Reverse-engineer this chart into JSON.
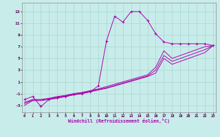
{
  "xlabel": "Windchill (Refroidissement éolien,°C)",
  "background_color": "#c8ecea",
  "grid_color": "#a8d4d0",
  "line_color": "#aa00aa",
  "x_ticks": [
    0,
    1,
    2,
    3,
    4,
    5,
    6,
    7,
    8,
    9,
    10,
    11,
    12,
    13,
    14,
    15,
    16,
    17,
    18,
    19,
    20,
    21,
    22,
    23
  ],
  "y_ticks": [
    -3,
    -1,
    1,
    3,
    5,
    7,
    9,
    11,
    13
  ],
  "xlim": [
    -0.3,
    23.3
  ],
  "ylim": [
    -4.2,
    14.5
  ],
  "series1_x": [
    0,
    1,
    2,
    3,
    4,
    5,
    6,
    7,
    8,
    9,
    10,
    11,
    12,
    13,
    14,
    15,
    16,
    17,
    18,
    19,
    20,
    21,
    22,
    23
  ],
  "series1_y": [
    -2.0,
    -1.5,
    -3.2,
    -2.0,
    -1.8,
    -1.5,
    -1.2,
    -1.0,
    -0.7,
    0.3,
    8.0,
    12.2,
    11.2,
    13.0,
    13.0,
    11.5,
    9.2,
    7.8,
    7.5,
    7.5,
    7.5,
    7.5,
    7.5,
    7.2
  ],
  "series2_x": [
    0,
    1,
    2,
    3,
    4,
    5,
    6,
    7,
    8,
    9,
    10,
    11,
    12,
    13,
    14,
    15,
    16,
    17,
    18,
    19,
    20,
    21,
    22,
    23
  ],
  "series2_y": [
    -2.5,
    -2.0,
    -2.0,
    -1.8,
    -1.5,
    -1.3,
    -1.0,
    -0.8,
    -0.5,
    -0.2,
    0.2,
    0.6,
    1.0,
    1.4,
    1.8,
    2.2,
    3.5,
    6.3,
    5.0,
    5.5,
    6.0,
    6.5,
    7.0,
    7.2
  ],
  "series3_x": [
    0,
    1,
    2,
    3,
    4,
    5,
    6,
    7,
    8,
    9,
    10,
    11,
    12,
    13,
    14,
    15,
    16,
    17,
    18,
    19,
    20,
    21,
    22,
    23
  ],
  "series3_y": [
    -2.7,
    -2.1,
    -2.1,
    -1.9,
    -1.6,
    -1.4,
    -1.1,
    -0.9,
    -0.6,
    -0.3,
    0.0,
    0.4,
    0.8,
    1.2,
    1.6,
    2.0,
    3.0,
    5.5,
    4.5,
    5.0,
    5.5,
    6.0,
    6.5,
    7.2
  ],
  "series4_x": [
    0,
    1,
    2,
    3,
    4,
    5,
    6,
    7,
    8,
    9,
    10,
    11,
    12,
    13,
    14,
    15,
    16,
    17,
    18,
    19,
    20,
    21,
    22,
    23
  ],
  "series4_y": [
    -3.0,
    -2.2,
    -2.2,
    -2.0,
    -1.7,
    -1.5,
    -1.2,
    -1.0,
    -0.7,
    -0.4,
    -0.1,
    0.3,
    0.7,
    1.1,
    1.5,
    1.9,
    2.5,
    5.0,
    4.0,
    4.5,
    5.0,
    5.5,
    6.0,
    7.2
  ]
}
